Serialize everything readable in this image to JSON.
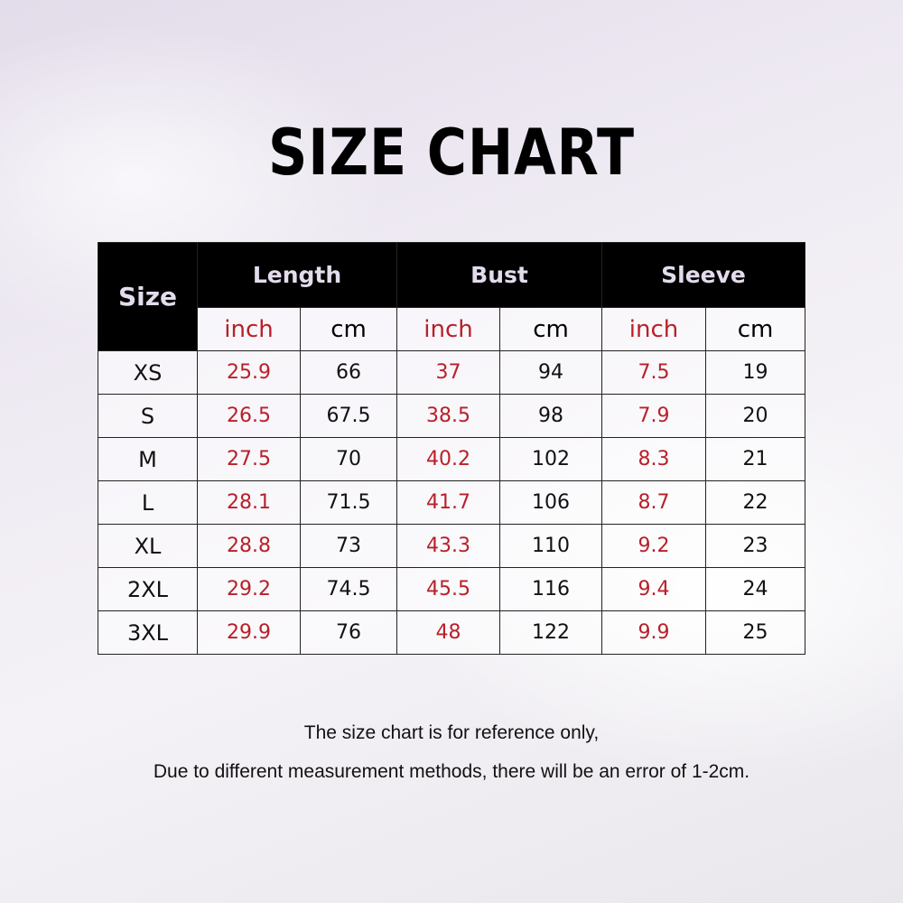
{
  "title": "SIZE CHART",
  "table": {
    "size_header": "Size",
    "groups": [
      "Length",
      "Bust",
      "Sleeve"
    ],
    "units": [
      "inch",
      "cm",
      "inch",
      "cm",
      "inch",
      "cm"
    ],
    "rows": [
      [
        "XS",
        "25.9",
        "66",
        "37",
        "94",
        "7.5",
        "19"
      ],
      [
        "S",
        "26.5",
        "67.5",
        "38.5",
        "98",
        "7.9",
        "20"
      ],
      [
        "M",
        "27.5",
        "70",
        "40.2",
        "102",
        "8.3",
        "21"
      ],
      [
        "L",
        "28.1",
        "71.5",
        "41.7",
        "106",
        "8.7",
        "22"
      ],
      [
        "XL",
        "28.8",
        "73",
        "43.3",
        "110",
        "9.2",
        "23"
      ],
      [
        "2XL",
        "29.2",
        "74.5",
        "45.5",
        "116",
        "9.4",
        "24"
      ],
      [
        "3XL",
        "29.9",
        "76",
        "48",
        "122",
        "9.9",
        "25"
      ]
    ]
  },
  "notes": [
    "The size chart is for reference only,",
    "Due to different measurement methods, there will be an error of 1-2cm."
  ],
  "colors": {
    "inch": "#b8202a",
    "header_bg": "#000000",
    "header_text": "#e3dcec"
  }
}
